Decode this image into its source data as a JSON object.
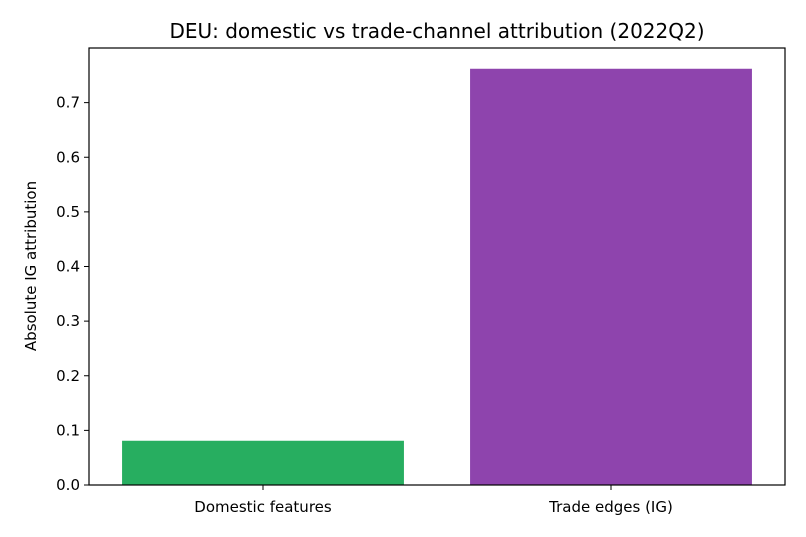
{
  "chart_data": {
    "type": "bar",
    "title": "DEU: domestic vs trade-channel attribution (2022Q2)",
    "xlabel": "",
    "ylabel": "Absolute IG attribution",
    "categories": [
      "Domestic features",
      "Trade edges (IG)"
    ],
    "values": [
      0.081,
      0.762
    ],
    "colors": [
      "#27ae60",
      "#8e44ad"
    ],
    "ylim": [
      0,
      0.8
    ],
    "yticks": [
      "0.0",
      "0.1",
      "0.2",
      "0.3",
      "0.4",
      "0.5",
      "0.6",
      "0.7"
    ],
    "grid": false,
    "legend": "none"
  }
}
